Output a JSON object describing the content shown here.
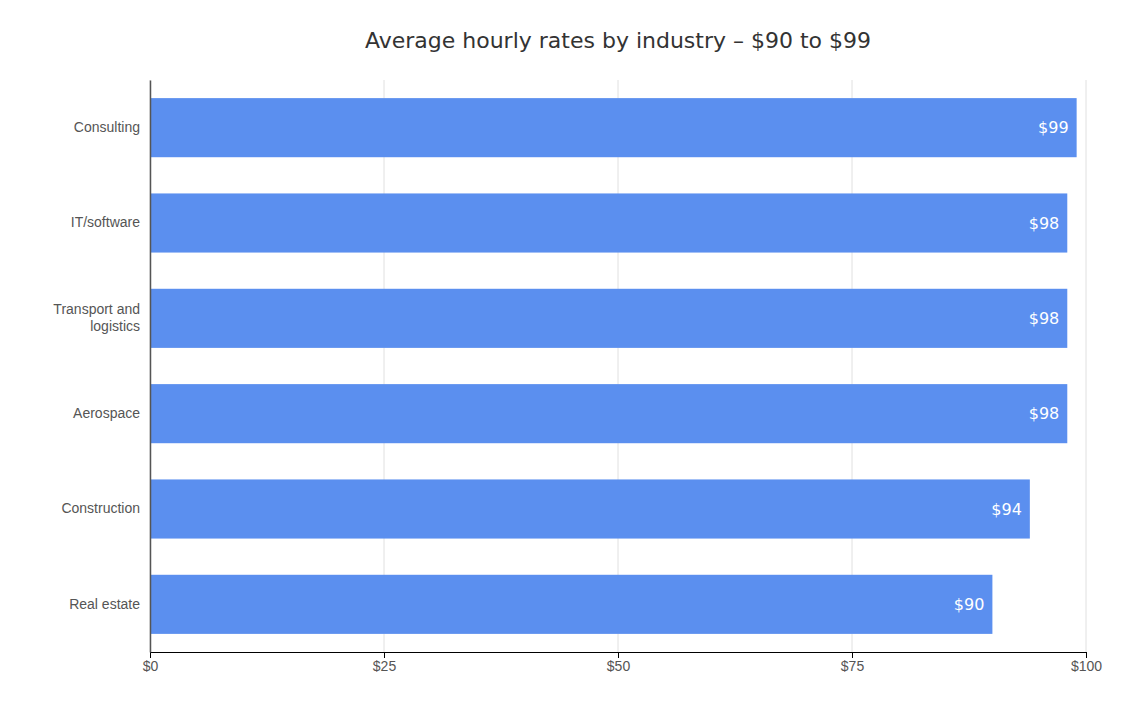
{
  "chart_data": {
    "type": "bar",
    "orientation": "horizontal",
    "title": "Average hourly rates by industry – $90 to $99",
    "categories": [
      "Real estate",
      "Construction",
      "Aerospace",
      "Transport and\nlogistics",
      "IT/software",
      "Consulting"
    ],
    "values": [
      90,
      94,
      98,
      98,
      98,
      99
    ],
    "value_labels": [
      "$90",
      "$94",
      "$98",
      "$98",
      "$98",
      "$99"
    ],
    "data_labels": true,
    "color": "#5b8fef",
    "xlim": [
      0,
      100
    ],
    "xticks": [
      {
        "value": 0,
        "label": "$0"
      },
      {
        "value": 25,
        "label": "$25"
      },
      {
        "value": 50,
        "label": "$50"
      },
      {
        "value": 75,
        "label": "$75"
      },
      {
        "value": 100,
        "label": "$100"
      }
    ],
    "grid": true
  }
}
